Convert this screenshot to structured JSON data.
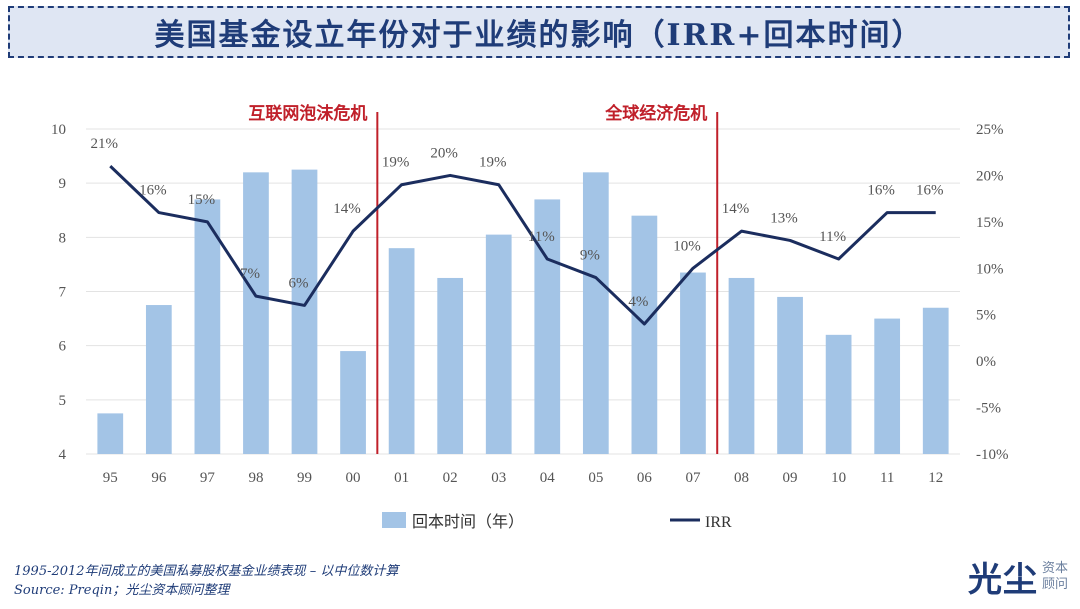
{
  "header": {
    "title": "美国基金设立年份对于业绩的影响（IRR+回本时间）"
  },
  "chart_data": {
    "type": "bar+line",
    "categories": [
      "95",
      "96",
      "97",
      "98",
      "99",
      "00",
      "01",
      "02",
      "03",
      "04",
      "05",
      "06",
      "07",
      "08",
      "09",
      "10",
      "11",
      "12"
    ],
    "series": [
      {
        "name": "回本时间（年）",
        "type": "bar",
        "axis": "left",
        "values": [
          4.75,
          6.75,
          8.7,
          9.2,
          9.25,
          5.9,
          7.8,
          7.25,
          8.05,
          8.7,
          9.2,
          8.4,
          7.35,
          7.25,
          6.9,
          6.2,
          6.5,
          6.7
        ]
      },
      {
        "name": "IRR",
        "type": "line",
        "axis": "right",
        "values": [
          21,
          16,
          15,
          7,
          6,
          14,
          19,
          20,
          19,
          11,
          9,
          4,
          10,
          14,
          13,
          11,
          16,
          16
        ],
        "labels": [
          "21%",
          "16%",
          "15%",
          "7%",
          "6%",
          "14%",
          "19%",
          "20%",
          "19%",
          "11%",
          "9%",
          "4%",
          "10%",
          "14%",
          "13%",
          "11%",
          "16%",
          "16%"
        ]
      }
    ],
    "left_axis": {
      "min": 4,
      "max": 10,
      "ticks": [
        "4",
        "5",
        "6",
        "7",
        "8",
        "9",
        "10"
      ]
    },
    "right_axis": {
      "min": -10,
      "max": 25,
      "ticks": [
        "-10%",
        "-5%",
        "0%",
        "5%",
        "10%",
        "15%",
        "20%",
        "25%"
      ]
    },
    "annotations": [
      {
        "text": "互联网泡沫危机",
        "after_category": "00"
      },
      {
        "text": "全球经济危机",
        "after_category": "07"
      }
    ],
    "legend": {
      "bar_label": "回本时间（年）",
      "line_label": "IRR",
      "placement": "bottom"
    },
    "colors": {
      "bar": "#a3c4e6",
      "line": "#1b2d5e",
      "crisis": "#c0202a",
      "text": "#555555"
    }
  },
  "footnote": {
    "line1": "1995-2012年间成立的美国私募股权基金业绩表现 – 以中位数计算",
    "line2": "Source: Preqin；光尘资本顾问整理"
  },
  "logo": {
    "main": "光尘",
    "sub1": "资本",
    "sub2": "顾问"
  }
}
